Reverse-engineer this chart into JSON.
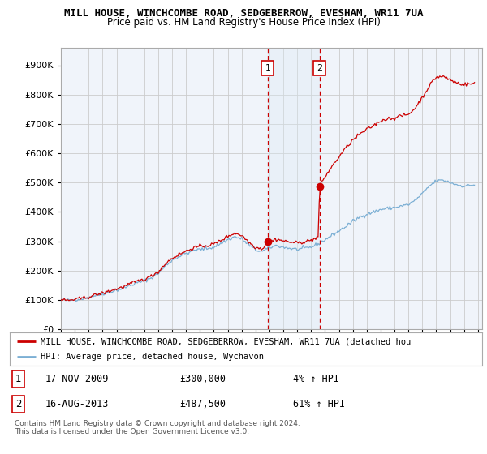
{
  "title": "MILL HOUSE, WINCHCOMBE ROAD, SEDGEBERROW, EVESHAM, WR11 7UA",
  "subtitle": "Price paid vs. HM Land Registry's House Price Index (HPI)",
  "ylabel_ticks": [
    0,
    100000,
    200000,
    300000,
    400000,
    500000,
    600000,
    700000,
    800000,
    900000
  ],
  "ylim": [
    0,
    960000
  ],
  "xlim_start": 1995.0,
  "xlim_end": 2025.3,
  "sale1_date": 2009.88,
  "sale1_price": 300000,
  "sale1_label": "1",
  "sale1_text": "17-NOV-2009",
  "sale1_amount": "£300,000",
  "sale1_hpi": "4% ↑ HPI",
  "sale2_date": 2013.62,
  "sale2_price": 487500,
  "sale2_label": "2",
  "sale2_text": "16-AUG-2013",
  "sale2_amount": "£487,500",
  "sale2_hpi": "61% ↑ HPI",
  "hpi_line_color": "#7bafd4",
  "property_line_color": "#cc0000",
  "marker_box_color": "#cc0000",
  "shade_color": "#dce9f5",
  "grid_color": "#cccccc",
  "background_color": "#ffffff",
  "plot_bg_color": "#f0f4fa",
  "legend_label_property": "MILL HOUSE, WINCHCOMBE ROAD, SEDGEBERROW, EVESHAM, WR11 7UA (detached hou",
  "legend_label_hpi": "HPI: Average price, detached house, Wychavon",
  "copyright_text": "Contains HM Land Registry data © Crown copyright and database right 2024.\nThis data is licensed under the Open Government Licence v3.0."
}
